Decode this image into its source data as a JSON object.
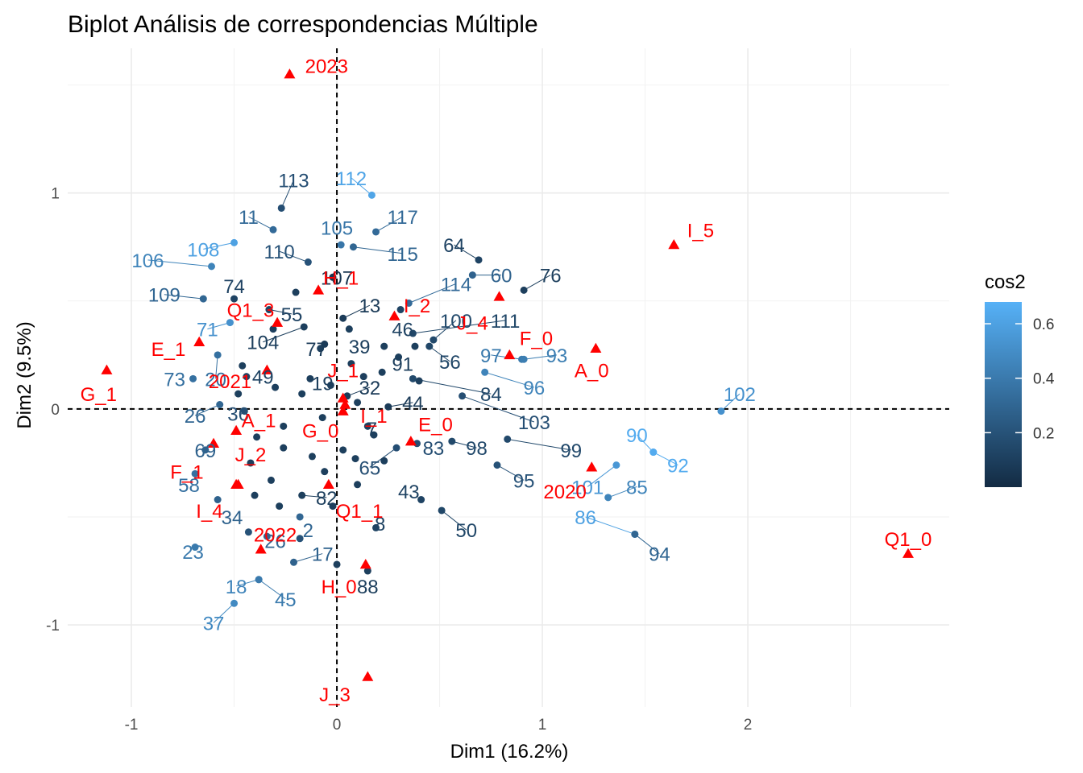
{
  "chart_data": {
    "type": "scatter",
    "title": "Biplot Análisis de correspondencias Múltiple",
    "xlabel": "Dim1 (16.2%)",
    "ylabel": "Dim2 (9.5%)",
    "xlim": [
      -1.31,
      2.98
    ],
    "ylim": [
      -1.38,
      1.67
    ],
    "xticks": [
      -1,
      0,
      1,
      2
    ],
    "xtick_labels": [
      "-1",
      "0",
      "1",
      "2"
    ],
    "yticks": [
      -1,
      0,
      1
    ],
    "ytick_labels": [
      "-1",
      "0",
      "1"
    ],
    "grid": true,
    "reference_lines": {
      "x": 0,
      "y": 0,
      "style": "dashed"
    },
    "legend": {
      "title": "cos2",
      "position": "right",
      "ticks": [
        0.2,
        0.4,
        0.6
      ],
      "tick_labels": [
        "0.2",
        "0.4",
        "0.6"
      ],
      "range": [
        0.0,
        0.68
      ],
      "color_low": "#132b43",
      "color_high": "#56b1f7"
    },
    "individuals": [
      {
        "label": "113",
        "x": -0.27,
        "y": 0.93,
        "cos2": 0.18,
        "lx": -0.21,
        "ly": 1.06
      },
      {
        "label": "112",
        "x": 0.17,
        "y": 0.99,
        "cos2": 0.62,
        "lx": 0.07,
        "ly": 1.07
      },
      {
        "label": "117",
        "x": 0.19,
        "y": 0.82,
        "cos2": 0.32,
        "lx": 0.32,
        "ly": 0.89
      },
      {
        "label": "11",
        "x": -0.31,
        "y": 0.83,
        "cos2": 0.32,
        "lx": -0.43,
        "ly": 0.89
      },
      {
        "label": "108",
        "x": -0.5,
        "y": 0.77,
        "cos2": 0.6,
        "lx": -0.65,
        "ly": 0.74
      },
      {
        "label": "106",
        "x": -0.61,
        "y": 0.66,
        "cos2": 0.45,
        "lx": -0.92,
        "ly": 0.69
      },
      {
        "label": "105",
        "x": 0.02,
        "y": 0.76,
        "cos2": 0.38,
        "lx": 0.0,
        "ly": 0.84
      },
      {
        "label": "115",
        "x": 0.08,
        "y": 0.75,
        "cos2": 0.3,
        "lx": 0.32,
        "ly": 0.72
      },
      {
        "label": "110",
        "x": -0.14,
        "y": 0.68,
        "cos2": 0.2,
        "lx": -0.28,
        "ly": 0.73
      },
      {
        "label": "64",
        "x": 0.69,
        "y": 0.69,
        "cos2": 0.12,
        "lx": 0.57,
        "ly": 0.76
      },
      {
        "label": "60",
        "x": 0.66,
        "y": 0.62,
        "cos2": 0.28,
        "lx": 0.8,
        "ly": 0.62
      },
      {
        "label": "76",
        "x": 0.91,
        "y": 0.55,
        "cos2": 0.1,
        "lx": 1.04,
        "ly": 0.62
      },
      {
        "label": "107",
        "x": -0.02,
        "y": 0.61,
        "cos2": 0.05,
        "lx": 0.0,
        "ly": 0.61
      },
      {
        "label": "114",
        "x": 0.35,
        "y": 0.49,
        "cos2": 0.32,
        "lx": 0.58,
        "ly": 0.58
      },
      {
        "label": "109",
        "x": -0.65,
        "y": 0.51,
        "cos2": 0.3,
        "lx": -0.84,
        "ly": 0.53
      },
      {
        "label": "74",
        "x": -0.5,
        "y": 0.51,
        "cos2": 0.12,
        "lx": -0.5,
        "ly": 0.57
      },
      {
        "label": "55",
        "x": -0.33,
        "y": 0.46,
        "cos2": 0.12,
        "lx": -0.22,
        "ly": 0.44
      },
      {
        "label": "13",
        "x": 0.03,
        "y": 0.42,
        "cos2": 0.08,
        "lx": 0.16,
        "ly": 0.48
      },
      {
        "label": "100",
        "x": 0.47,
        "y": 0.32,
        "cos2": 0.15,
        "lx": 0.58,
        "ly": 0.41
      },
      {
        "label": "111",
        "x": 0.37,
        "y": 0.35,
        "cos2": 0.14,
        "lx": 0.82,
        "ly": 0.41
      },
      {
        "label": "46",
        "x": 0.31,
        "y": 0.46,
        "cos2": 0.12,
        "lx": 0.32,
        "ly": 0.37
      },
      {
        "label": "71",
        "x": -0.52,
        "y": 0.4,
        "cos2": 0.52,
        "lx": -0.63,
        "ly": 0.37
      },
      {
        "label": "104",
        "x": -0.16,
        "y": 0.38,
        "cos2": 0.1,
        "lx": -0.36,
        "ly": 0.31
      },
      {
        "label": "39",
        "x": 0.06,
        "y": 0.37,
        "cos2": 0.1,
        "lx": 0.11,
        "ly": 0.29
      },
      {
        "label": "77",
        "x": -0.06,
        "y": 0.3,
        "cos2": 0.08,
        "lx": -0.1,
        "ly": 0.28
      },
      {
        "label": "56",
        "x": 0.45,
        "y": 0.29,
        "cos2": 0.14,
        "lx": 0.55,
        "ly": 0.22
      },
      {
        "label": "97",
        "x": 0.9,
        "y": 0.23,
        "cos2": 0.4,
        "lx": 0.75,
        "ly": 0.25
      },
      {
        "label": "93",
        "x": 0.91,
        "y": 0.23,
        "cos2": 0.42,
        "lx": 1.07,
        "ly": 0.25
      },
      {
        "label": "91",
        "x": 0.3,
        "y": 0.24,
        "cos2": 0.1,
        "lx": 0.32,
        "ly": 0.21
      },
      {
        "label": "73",
        "x": -0.7,
        "y": 0.14,
        "cos2": 0.35,
        "lx": -0.79,
        "ly": 0.14
      },
      {
        "label": "20",
        "x": -0.58,
        "y": 0.25,
        "cos2": 0.35,
        "lx": -0.59,
        "ly": 0.14
      },
      {
        "label": "49",
        "x": -0.44,
        "y": 0.15,
        "cos2": 0.12,
        "lx": -0.36,
        "ly": 0.15
      },
      {
        "label": "19",
        "x": -0.13,
        "y": 0.14,
        "cos2": 0.1,
        "lx": -0.07,
        "ly": 0.12
      },
      {
        "label": "96",
        "x": 0.72,
        "y": 0.17,
        "cos2": 0.45,
        "lx": 0.96,
        "ly": 0.1
      },
      {
        "label": "84",
        "x": 0.37,
        "y": 0.14,
        "cos2": 0.15,
        "lx": 0.75,
        "ly": 0.07
      },
      {
        "label": "32",
        "x": 0.05,
        "y": 0.06,
        "cos2": 0.08,
        "lx": 0.16,
        "ly": 0.1
      },
      {
        "label": "44",
        "x": 0.25,
        "y": 0.01,
        "cos2": 0.08,
        "lx": 0.37,
        "ly": 0.03
      },
      {
        "label": "102",
        "x": 1.87,
        "y": -0.01,
        "cos2": 0.52,
        "lx": 1.96,
        "ly": 0.07
      },
      {
        "label": "103",
        "x": 0.61,
        "y": 0.06,
        "cos2": 0.18,
        "lx": 0.96,
        "ly": -0.06
      },
      {
        "label": "26",
        "x": -0.57,
        "y": 0.02,
        "cos2": 0.3,
        "lx": -0.69,
        "ly": -0.03
      },
      {
        "label": "36",
        "x": -0.45,
        "y": -0.01,
        "cos2": 0.18,
        "lx": -0.48,
        "ly": -0.02
      },
      {
        "label": "7",
        "x": 0.15,
        "y": -0.08,
        "cos2": 0.1,
        "lx": 0.17,
        "ly": -0.09
      },
      {
        "label": "69",
        "x": -0.64,
        "y": -0.19,
        "cos2": 0.28,
        "lx": -0.64,
        "ly": -0.19
      },
      {
        "label": "83",
        "x": 0.39,
        "y": -0.16,
        "cos2": 0.18,
        "lx": 0.47,
        "ly": -0.18
      },
      {
        "label": "98",
        "x": 0.56,
        "y": -0.15,
        "cos2": 0.15,
        "lx": 0.68,
        "ly": -0.18
      },
      {
        "label": "99",
        "x": 0.83,
        "y": -0.14,
        "cos2": 0.15,
        "lx": 1.14,
        "ly": -0.19
      },
      {
        "label": "90",
        "x": 1.54,
        "y": -0.2,
        "cos2": 0.65,
        "lx": 1.46,
        "ly": -0.12
      },
      {
        "label": "92",
        "x": 1.54,
        "y": -0.2,
        "cos2": 0.65,
        "lx": 1.66,
        "ly": -0.26
      },
      {
        "label": "65",
        "x": 0.29,
        "y": -0.18,
        "cos2": 0.18,
        "lx": 0.16,
        "ly": -0.27
      },
      {
        "label": "58",
        "x": -0.69,
        "y": -0.3,
        "cos2": 0.35,
        "lx": -0.72,
        "ly": -0.35
      },
      {
        "label": "95",
        "x": 0.78,
        "y": -0.26,
        "cos2": 0.2,
        "lx": 0.91,
        "ly": -0.33
      },
      {
        "label": "101",
        "x": 1.36,
        "y": -0.26,
        "cos2": 0.55,
        "lx": 1.22,
        "ly": -0.36
      },
      {
        "label": "85",
        "x": 1.32,
        "y": -0.41,
        "cos2": 0.45,
        "lx": 1.46,
        "ly": -0.36
      },
      {
        "label": "43",
        "x": 0.41,
        "y": -0.42,
        "cos2": 0.12,
        "lx": 0.35,
        "ly": -0.38
      },
      {
        "label": "82",
        "x": -0.17,
        "y": -0.4,
        "cos2": 0.1,
        "lx": -0.05,
        "ly": -0.41
      },
      {
        "label": "34",
        "x": -0.58,
        "y": -0.42,
        "cos2": 0.28,
        "lx": -0.51,
        "ly": -0.5
      },
      {
        "label": "86",
        "x": 1.45,
        "y": -0.58,
        "cos2": 0.6,
        "lx": 1.21,
        "ly": -0.5
      },
      {
        "label": "8",
        "x": 0.19,
        "y": -0.55,
        "cos2": 0.12,
        "lx": 0.21,
        "ly": -0.53
      },
      {
        "label": "50",
        "x": 0.51,
        "y": -0.47,
        "cos2": 0.14,
        "lx": 0.63,
        "ly": -0.56
      },
      {
        "label": "2",
        "x": -0.18,
        "y": -0.5,
        "cos2": 0.3,
        "lx": -0.14,
        "ly": -0.56
      },
      {
        "label": "26b",
        "x": -0.34,
        "y": -0.59,
        "cos2": 0.3,
        "lx": -0.3,
        "ly": -0.61
      },
      {
        "label": "23",
        "x": -0.69,
        "y": -0.64,
        "cos2": 0.4,
        "lx": -0.7,
        "ly": -0.66
      },
      {
        "label": "17",
        "x": -0.21,
        "y": -0.71,
        "cos2": 0.28,
        "lx": -0.07,
        "ly": -0.67
      },
      {
        "label": "94",
        "x": 1.45,
        "y": -0.58,
        "cos2": 0.3,
        "lx": 1.57,
        "ly": -0.67
      },
      {
        "label": "88",
        "x": 0.15,
        "y": -0.75,
        "cos2": 0.1,
        "lx": 0.15,
        "ly": -0.82
      },
      {
        "label": "18",
        "x": -0.38,
        "y": -0.79,
        "cos2": 0.45,
        "lx": -0.49,
        "ly": -0.82
      },
      {
        "label": "45",
        "x": -0.38,
        "y": -0.79,
        "cos2": 0.4,
        "lx": -0.25,
        "ly": -0.88
      },
      {
        "label": "37",
        "x": -0.5,
        "y": -0.9,
        "cos2": 0.48,
        "lx": -0.6,
        "ly": -0.99
      }
    ],
    "individuals_extra": [
      {
        "x": -0.31,
        "y": 0.37,
        "cos2": 0.1
      },
      {
        "x": -0.2,
        "y": 0.54,
        "cos2": 0.1
      },
      {
        "x": -0.46,
        "y": 0.2,
        "cos2": 0.1
      },
      {
        "x": -0.3,
        "y": 0.1,
        "cos2": 0.1
      },
      {
        "x": -0.17,
        "y": 0.07,
        "cos2": 0.1
      },
      {
        "x": -0.03,
        "y": 0.11,
        "cos2": 0.1
      },
      {
        "x": 0.07,
        "y": 0.21,
        "cos2": 0.1
      },
      {
        "x": 0.13,
        "y": 0.15,
        "cos2": 0.1
      },
      {
        "x": 0.22,
        "y": 0.17,
        "cos2": 0.1
      },
      {
        "x": 0.38,
        "y": 0.29,
        "cos2": 0.1
      },
      {
        "x": 0.1,
        "y": 0.03,
        "cos2": 0.1
      },
      {
        "x": 0.18,
        "y": -0.12,
        "cos2": 0.1
      },
      {
        "x": -0.26,
        "y": -0.08,
        "cos2": 0.1
      },
      {
        "x": -0.39,
        "y": -0.13,
        "cos2": 0.1
      },
      {
        "x": -0.26,
        "y": -0.18,
        "cos2": 0.1
      },
      {
        "x": -0.12,
        "y": -0.22,
        "cos2": 0.1
      },
      {
        "x": 0.03,
        "y": -0.19,
        "cos2": 0.1
      },
      {
        "x": 0.09,
        "y": -0.23,
        "cos2": 0.1
      },
      {
        "x": -0.06,
        "y": -0.29,
        "cos2": 0.1
      },
      {
        "x": 0.1,
        "y": -0.35,
        "cos2": 0.1
      },
      {
        "x": -0.42,
        "y": -0.25,
        "cos2": 0.1
      },
      {
        "x": -0.32,
        "y": -0.33,
        "cos2": 0.1
      },
      {
        "x": -0.4,
        "y": -0.4,
        "cos2": 0.1
      },
      {
        "x": -0.28,
        "y": -0.45,
        "cos2": 0.1
      },
      {
        "x": -0.02,
        "y": -0.45,
        "cos2": 0.1
      },
      {
        "x": -0.43,
        "y": -0.57,
        "cos2": 0.2
      },
      {
        "x": -0.18,
        "y": -0.6,
        "cos2": 0.2
      },
      {
        "x": 0.0,
        "y": -0.72,
        "cos2": 0.1
      },
      {
        "x": 0.23,
        "y": -0.24,
        "cos2": 0.1
      },
      {
        "x": 0.4,
        "y": 0.13,
        "cos2": 0.1
      },
      {
        "x": -0.48,
        "y": 0.07,
        "cos2": 0.1
      },
      {
        "x": -0.08,
        "y": 0.28,
        "cos2": 0.1
      },
      {
        "x": 0.23,
        "y": 0.29,
        "cos2": 0.1
      },
      {
        "x": -0.07,
        "y": -0.04,
        "cos2": 0.1
      }
    ],
    "categories": [
      {
        "label": "2023",
        "x": -0.23,
        "y": 1.55,
        "lx": -0.05,
        "ly": 1.59
      },
      {
        "label": "I_5",
        "x": 1.64,
        "y": 0.76,
        "lx": 1.77,
        "ly": 0.83
      },
      {
        "label": "H_1",
        "x": -0.09,
        "y": 0.55,
        "lx": 0.02,
        "ly": 0.61
      },
      {
        "label": "I_2",
        "x": 0.28,
        "y": 0.43,
        "lx": 0.39,
        "ly": 0.48
      },
      {
        "label": "Q1_3",
        "x": -0.29,
        "y": 0.4,
        "lx": -0.42,
        "ly": 0.46
      },
      {
        "label": "J_4",
        "x": 0.79,
        "y": 0.52,
        "lx": 0.66,
        "ly": 0.4
      },
      {
        "label": "F_0",
        "x": 0.84,
        "y": 0.25,
        "lx": 0.97,
        "ly": 0.33
      },
      {
        "label": "A_0",
        "x": 1.26,
        "y": 0.28,
        "lx": 1.24,
        "ly": 0.18
      },
      {
        "label": "E_1",
        "x": -0.67,
        "y": 0.31,
        "lx": -0.82,
        "ly": 0.28
      },
      {
        "label": "J_1",
        "x": 0.03,
        "y": 0.05,
        "lx": 0.03,
        "ly": 0.18
      },
      {
        "label": "2021",
        "x": -0.34,
        "y": 0.18,
        "lx": -0.52,
        "ly": 0.13
      },
      {
        "label": "G_1",
        "x": -1.12,
        "y": 0.18,
        "lx": -1.16,
        "ly": 0.07
      },
      {
        "label": "I_1",
        "x": 0.04,
        "y": 0.02,
        "lx": 0.18,
        "ly": -0.03
      },
      {
        "label": "E_0",
        "x": 0.36,
        "y": -0.15,
        "lx": 0.48,
        "ly": -0.07
      },
      {
        "label": "G_0",
        "x": 0.03,
        "y": -0.01,
        "lx": -0.08,
        "ly": -0.1
      },
      {
        "label": "A_1",
        "x": -0.49,
        "y": -0.1,
        "lx": -0.38,
        "ly": -0.05
      },
      {
        "label": "J_2",
        "x": -0.6,
        "y": -0.16,
        "lx": -0.42,
        "ly": -0.21
      },
      {
        "label": "F_1",
        "x": -0.49,
        "y": -0.35,
        "lx": -0.73,
        "ly": -0.29
      },
      {
        "label": "2020",
        "x": 1.24,
        "y": -0.27,
        "lx": 1.11,
        "ly": -0.38
      },
      {
        "label": "I_4",
        "x": -0.48,
        "y": -0.35,
        "lx": -0.62,
        "ly": -0.47
      },
      {
        "label": "Q1_1",
        "x": -0.04,
        "y": -0.35,
        "lx": 0.11,
        "ly": -0.47
      },
      {
        "label": "2022",
        "x": -0.37,
        "y": -0.65,
        "lx": -0.3,
        "ly": -0.58
      },
      {
        "label": "Q1_0",
        "x": 2.78,
        "y": -0.67,
        "lx": 2.78,
        "ly": -0.6
      },
      {
        "label": "H_0",
        "x": 0.14,
        "y": -0.72,
        "lx": 0.01,
        "ly": -0.82
      },
      {
        "label": "J_3",
        "x": 0.15,
        "y": -1.24,
        "lx": -0.01,
        "ly": -1.32
      }
    ]
  }
}
